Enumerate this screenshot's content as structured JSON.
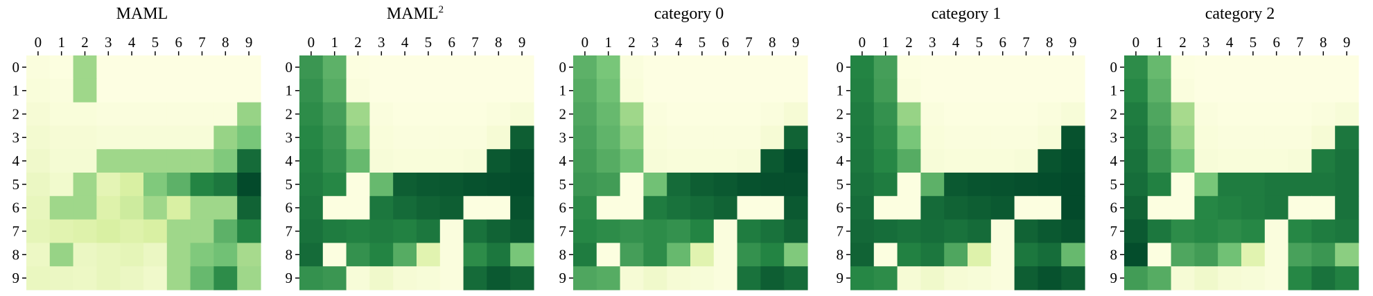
{
  "figure": {
    "labels": [
      "0",
      "1",
      "2",
      "3",
      "4",
      "5",
      "6",
      "7",
      "8",
      "9"
    ],
    "panels": [
      {
        "title": "MAML",
        "superscript": ""
      },
      {
        "title": "MAML",
        "superscript": "2"
      },
      {
        "title": "category 0",
        "superscript": ""
      },
      {
        "title": "category 1",
        "superscript": ""
      },
      {
        "title": "category 2",
        "superscript": ""
      }
    ]
  },
  "chart_data": [
    {
      "type": "heatmap",
      "title": "MAML",
      "x_labels": [
        "0",
        "1",
        "2",
        "3",
        "4",
        "5",
        "6",
        "7",
        "8",
        "9"
      ],
      "y_labels": [
        "0",
        "1",
        "2",
        "3",
        "4",
        "5",
        "6",
        "7",
        "8",
        "9"
      ],
      "color_scale": [
        "#ffffe5",
        "#d9f0a3",
        "#78c679",
        "#238443",
        "#004529"
      ],
      "values": [
        [
          0.03,
          0.02,
          0.4,
          0.01,
          0.01,
          0.01,
          0.01,
          0.01,
          0.01,
          0.01
        ],
        [
          0.04,
          0.03,
          0.4,
          0.01,
          0.01,
          0.01,
          0.01,
          0.01,
          0.01,
          0.01
        ],
        [
          0.06,
          0.04,
          0.04,
          0.03,
          0.03,
          0.03,
          0.03,
          0.03,
          0.03,
          0.42
        ],
        [
          0.08,
          0.06,
          0.06,
          0.05,
          0.05,
          0.05,
          0.05,
          0.05,
          0.42,
          0.5
        ],
        [
          0.1,
          0.07,
          0.07,
          0.4,
          0.4,
          0.4,
          0.4,
          0.4,
          0.48,
          0.85
        ],
        [
          0.13,
          0.09,
          0.4,
          0.18,
          0.25,
          0.48,
          0.58,
          0.75,
          0.8,
          0.98
        ],
        [
          0.15,
          0.4,
          0.4,
          0.22,
          0.28,
          0.4,
          0.25,
          0.4,
          0.4,
          0.88
        ],
        [
          0.17,
          0.2,
          0.22,
          0.25,
          0.22,
          0.25,
          0.4,
          0.4,
          0.58,
          0.75
        ],
        [
          0.12,
          0.42,
          0.13,
          0.15,
          0.17,
          0.13,
          0.4,
          0.48,
          0.52,
          0.38
        ],
        [
          0.14,
          0.13,
          0.12,
          0.15,
          0.13,
          0.1,
          0.4,
          0.55,
          0.72,
          0.4
        ]
      ]
    },
    {
      "type": "heatmap",
      "title": "MAML²",
      "x_labels": [
        "0",
        "1",
        "2",
        "3",
        "4",
        "5",
        "6",
        "7",
        "8",
        "9"
      ],
      "y_labels": [
        "0",
        "1",
        "2",
        "3",
        "4",
        "5",
        "6",
        "7",
        "8",
        "9"
      ],
      "color_scale": [
        "#ffffe5",
        "#d9f0a3",
        "#78c679",
        "#238443",
        "#004529"
      ],
      "values": [
        [
          0.68,
          0.58,
          0.02,
          0.01,
          0.01,
          0.01,
          0.01,
          0.01,
          0.01,
          0.01
        ],
        [
          0.7,
          0.6,
          0.03,
          0.01,
          0.01,
          0.01,
          0.01,
          0.01,
          0.01,
          0.01
        ],
        [
          0.72,
          0.65,
          0.4,
          0.03,
          0.02,
          0.02,
          0.02,
          0.02,
          0.03,
          0.05
        ],
        [
          0.74,
          0.68,
          0.45,
          0.04,
          0.03,
          0.03,
          0.03,
          0.03,
          0.06,
          0.9
        ],
        [
          0.76,
          0.7,
          0.55,
          0.05,
          0.04,
          0.04,
          0.04,
          0.05,
          0.92,
          0.96
        ],
        [
          0.78,
          0.74,
          0.02,
          0.55,
          0.9,
          0.92,
          0.93,
          0.95,
          0.96,
          0.97
        ],
        [
          0.8,
          0.02,
          0.02,
          0.8,
          0.85,
          0.88,
          0.9,
          0.02,
          0.02,
          0.95
        ],
        [
          0.82,
          0.78,
          0.76,
          0.78,
          0.76,
          0.8,
          0.03,
          0.82,
          0.88,
          0.92
        ],
        [
          0.85,
          0.02,
          0.7,
          0.75,
          0.6,
          0.2,
          0.03,
          0.72,
          0.8,
          0.5
        ],
        [
          0.7,
          0.68,
          0.05,
          0.1,
          0.06,
          0.05,
          0.03,
          0.85,
          0.92,
          0.88
        ]
      ]
    },
    {
      "type": "heatmap",
      "title": "category 0",
      "x_labels": [
        "0",
        "1",
        "2",
        "3",
        "4",
        "5",
        "6",
        "7",
        "8",
        "9"
      ],
      "y_labels": [
        "0",
        "1",
        "2",
        "3",
        "4",
        "5",
        "6",
        "7",
        "8",
        "9"
      ],
      "color_scale": [
        "#ffffe5",
        "#d9f0a3",
        "#78c679",
        "#238443",
        "#004529"
      ],
      "values": [
        [
          0.58,
          0.5,
          0.03,
          0.01,
          0.01,
          0.01,
          0.01,
          0.01,
          0.01,
          0.01
        ],
        [
          0.6,
          0.52,
          0.04,
          0.01,
          0.01,
          0.01,
          0.01,
          0.01,
          0.01,
          0.01
        ],
        [
          0.62,
          0.55,
          0.4,
          0.03,
          0.02,
          0.02,
          0.02,
          0.02,
          0.03,
          0.06
        ],
        [
          0.64,
          0.57,
          0.45,
          0.04,
          0.03,
          0.03,
          0.03,
          0.03,
          0.06,
          0.88
        ],
        [
          0.66,
          0.6,
          0.52,
          0.05,
          0.04,
          0.04,
          0.04,
          0.05,
          0.92,
          0.98
        ],
        [
          0.68,
          0.66,
          0.02,
          0.52,
          0.85,
          0.9,
          0.92,
          0.95,
          0.96,
          0.96
        ],
        [
          0.72,
          0.02,
          0.02,
          0.78,
          0.82,
          0.85,
          0.88,
          0.02,
          0.02,
          0.92
        ],
        [
          0.74,
          0.72,
          0.7,
          0.72,
          0.7,
          0.75,
          0.03,
          0.78,
          0.82,
          0.88
        ],
        [
          0.78,
          0.02,
          0.65,
          0.72,
          0.55,
          0.2,
          0.03,
          0.7,
          0.75,
          0.48
        ],
        [
          0.62,
          0.6,
          0.06,
          0.1,
          0.06,
          0.05,
          0.03,
          0.82,
          0.9,
          0.85
        ]
      ]
    },
    {
      "type": "heatmap",
      "title": "category 1",
      "x_labels": [
        "0",
        "1",
        "2",
        "3",
        "4",
        "5",
        "6",
        "7",
        "8",
        "9"
      ],
      "y_labels": [
        "0",
        "1",
        "2",
        "3",
        "4",
        "5",
        "6",
        "7",
        "8",
        "9"
      ],
      "color_scale": [
        "#ffffe5",
        "#d9f0a3",
        "#78c679",
        "#238443",
        "#004529"
      ],
      "values": [
        [
          0.75,
          0.65,
          0.02,
          0.01,
          0.01,
          0.01,
          0.01,
          0.01,
          0.01,
          0.01
        ],
        [
          0.76,
          0.66,
          0.03,
          0.01,
          0.01,
          0.01,
          0.01,
          0.01,
          0.01,
          0.01
        ],
        [
          0.78,
          0.7,
          0.42,
          0.03,
          0.02,
          0.02,
          0.02,
          0.02,
          0.03,
          0.05
        ],
        [
          0.79,
          0.72,
          0.5,
          0.04,
          0.03,
          0.03,
          0.03,
          0.03,
          0.05,
          0.95
        ],
        [
          0.8,
          0.74,
          0.6,
          0.05,
          0.04,
          0.04,
          0.04,
          0.05,
          0.94,
          0.97
        ],
        [
          0.82,
          0.78,
          0.02,
          0.58,
          0.92,
          0.94,
          0.95,
          0.96,
          0.97,
          0.98
        ],
        [
          0.84,
          0.02,
          0.02,
          0.85,
          0.88,
          0.9,
          0.92,
          0.02,
          0.02,
          0.98
        ],
        [
          0.86,
          0.84,
          0.82,
          0.84,
          0.82,
          0.85,
          0.03,
          0.88,
          0.92,
          0.95
        ],
        [
          0.88,
          0.02,
          0.76,
          0.8,
          0.62,
          0.22,
          0.03,
          0.8,
          0.84,
          0.55
        ],
        [
          0.74,
          0.72,
          0.06,
          0.1,
          0.06,
          0.05,
          0.03,
          0.9,
          0.95,
          0.9
        ]
      ]
    },
    {
      "type": "heatmap",
      "title": "category 2",
      "x_labels": [
        "0",
        "1",
        "2",
        "3",
        "4",
        "5",
        "6",
        "7",
        "8",
        "9"
      ],
      "y_labels": [
        "0",
        "1",
        "2",
        "3",
        "4",
        "5",
        "6",
        "7",
        "8",
        "9"
      ],
      "color_scale": [
        "#ffffe5",
        "#d9f0a3",
        "#78c679",
        "#238443",
        "#004529"
      ],
      "values": [
        [
          0.72,
          0.55,
          0.02,
          0.01,
          0.01,
          0.01,
          0.01,
          0.01,
          0.01,
          0.01
        ],
        [
          0.74,
          0.58,
          0.03,
          0.01,
          0.01,
          0.01,
          0.01,
          0.01,
          0.01,
          0.01
        ],
        [
          0.78,
          0.62,
          0.38,
          0.03,
          0.02,
          0.02,
          0.02,
          0.02,
          0.03,
          0.05
        ],
        [
          0.8,
          0.65,
          0.42,
          0.04,
          0.03,
          0.03,
          0.03,
          0.03,
          0.06,
          0.8
        ],
        [
          0.82,
          0.68,
          0.5,
          0.05,
          0.04,
          0.04,
          0.04,
          0.05,
          0.78,
          0.82
        ],
        [
          0.84,
          0.76,
          0.02,
          0.5,
          0.78,
          0.78,
          0.8,
          0.8,
          0.8,
          0.82
        ],
        [
          0.88,
          0.02,
          0.02,
          0.74,
          0.76,
          0.78,
          0.8,
          0.02,
          0.02,
          0.82
        ],
        [
          0.92,
          0.8,
          0.72,
          0.74,
          0.72,
          0.74,
          0.03,
          0.74,
          0.78,
          0.8
        ],
        [
          0.97,
          0.02,
          0.62,
          0.66,
          0.52,
          0.2,
          0.03,
          0.64,
          0.68,
          0.45
        ],
        [
          0.66,
          0.6,
          0.06,
          0.1,
          0.06,
          0.05,
          0.03,
          0.74,
          0.82,
          0.76
        ]
      ]
    }
  ]
}
